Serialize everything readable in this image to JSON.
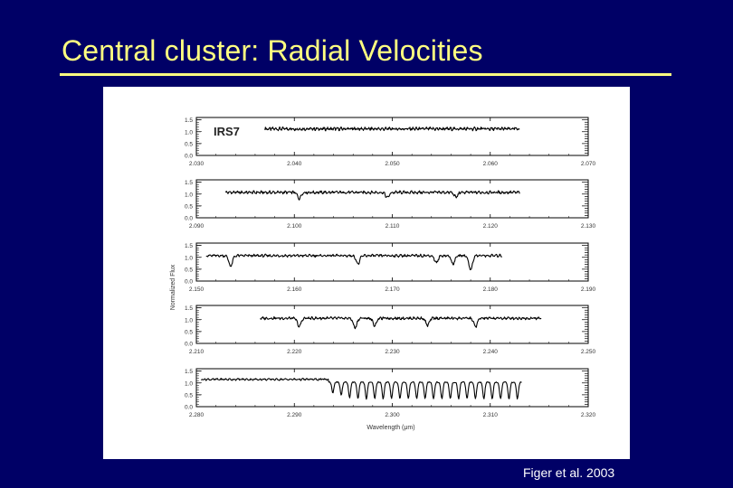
{
  "slide": {
    "title": "Central cluster: Radial Velocities",
    "credit": "Figer et al. 2003"
  },
  "colors": {
    "background": "#000066",
    "title": "#ffff80",
    "figure_bg": "#ffffff",
    "ink": "#000000"
  },
  "chart_data": {
    "type": "line",
    "title": "",
    "star_label": "IRS7",
    "ylabel": "Normalized Flux",
    "xlabel": "Wavelength (μm)",
    "y_ticks": [
      "1.5",
      "1.0",
      "0.5",
      "0.0"
    ],
    "ylim": [
      0,
      1.6
    ],
    "panels": [
      {
        "xlim": [
          2.03,
          2.07
        ],
        "x_ticks": [
          "2.030",
          "2.040",
          "2.050",
          "2.060",
          "2.070"
        ],
        "x_data_range": [
          2.037,
          2.063
        ],
        "continuum": 1.12,
        "noise": 0.1,
        "lines": []
      },
      {
        "xlim": [
          2.09,
          2.13
        ],
        "x_ticks": [
          "2.090",
          "2.100",
          "2.110",
          "2.120",
          "2.130"
        ],
        "x_data_range": [
          2.093,
          2.123
        ],
        "continuum": 1.07,
        "noise": 0.09,
        "lines": [
          [
            2.1005,
            0.25
          ],
          [
            2.1095,
            0.22
          ],
          [
            2.1165,
            0.2
          ]
        ]
      },
      {
        "xlim": [
          2.15,
          2.19
        ],
        "x_ticks": [
          "2.150",
          "2.160",
          "2.170",
          "2.180",
          "2.190"
        ],
        "x_data_range": [
          2.151,
          2.1812
        ],
        "continuum": 1.07,
        "noise": 0.08,
        "lines": [
          [
            2.1535,
            0.45
          ],
          [
            2.1665,
            0.35
          ],
          [
            2.1745,
            0.3
          ],
          [
            2.1762,
            0.35
          ],
          [
            2.178,
            0.6
          ]
        ]
      },
      {
        "xlim": [
          2.21,
          2.25
        ],
        "x_ticks": [
          "2.210",
          "2.220",
          "2.230",
          "2.240",
          "2.250"
        ],
        "x_data_range": [
          2.2165,
          2.2452
        ],
        "continuum": 1.06,
        "noise": 0.08,
        "lines": [
          [
            2.2205,
            0.35
          ],
          [
            2.2262,
            0.4
          ],
          [
            2.2282,
            0.3
          ],
          [
            2.2336,
            0.3
          ],
          [
            2.2385,
            0.35
          ]
        ]
      },
      {
        "xlim": [
          2.28,
          2.32
        ],
        "x_ticks": [
          "2.280",
          "2.290",
          "2.300",
          "2.310",
          "2.320"
        ],
        "x_data_range": [
          2.2805,
          2.3132
        ],
        "continuum": 1.15,
        "noise": 0.06,
        "co_bandhead": 2.2935,
        "co_depth": 0.7,
        "co_count": 23,
        "lines": []
      }
    ]
  }
}
